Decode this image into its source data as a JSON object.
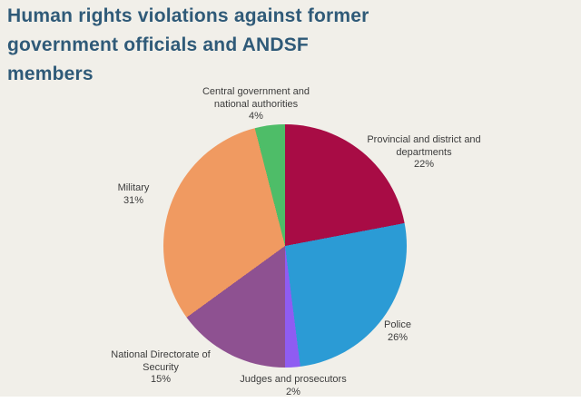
{
  "page": {
    "background_color": "#F1EFE9",
    "title_color": "#2F5A78",
    "title_lines": [
      "Human rights violations against former",
      "government officials and ANDSF",
      "members"
    ]
  },
  "chart_data": {
    "type": "pie",
    "title": "Human rights violations against former government officials and ANDSF members",
    "unit": "%",
    "start_angle_deg": 0,
    "direction": "clockwise",
    "legend": "none, direct slice labels",
    "slices": [
      {
        "label": "Provincial and district and departments",
        "value": 22,
        "pct_label": "22%",
        "color": "#A80C45"
      },
      {
        "label": "Police",
        "value": 26,
        "pct_label": "26%",
        "color": "#2B9BD5"
      },
      {
        "label": "Judges and prosecutors",
        "value": 2,
        "pct_label": "2%",
        "color": "#8F5CF2"
      },
      {
        "label": "National Directorate of Security",
        "value": 15,
        "pct_label": "15%",
        "color": "#8E5191"
      },
      {
        "label": "Military",
        "value": 31,
        "pct_label": "31%",
        "color": "#F09A61"
      },
      {
        "label": "Central government and national authorities",
        "value": 4,
        "pct_label": "4%",
        "color": "#4EBD68"
      }
    ]
  }
}
